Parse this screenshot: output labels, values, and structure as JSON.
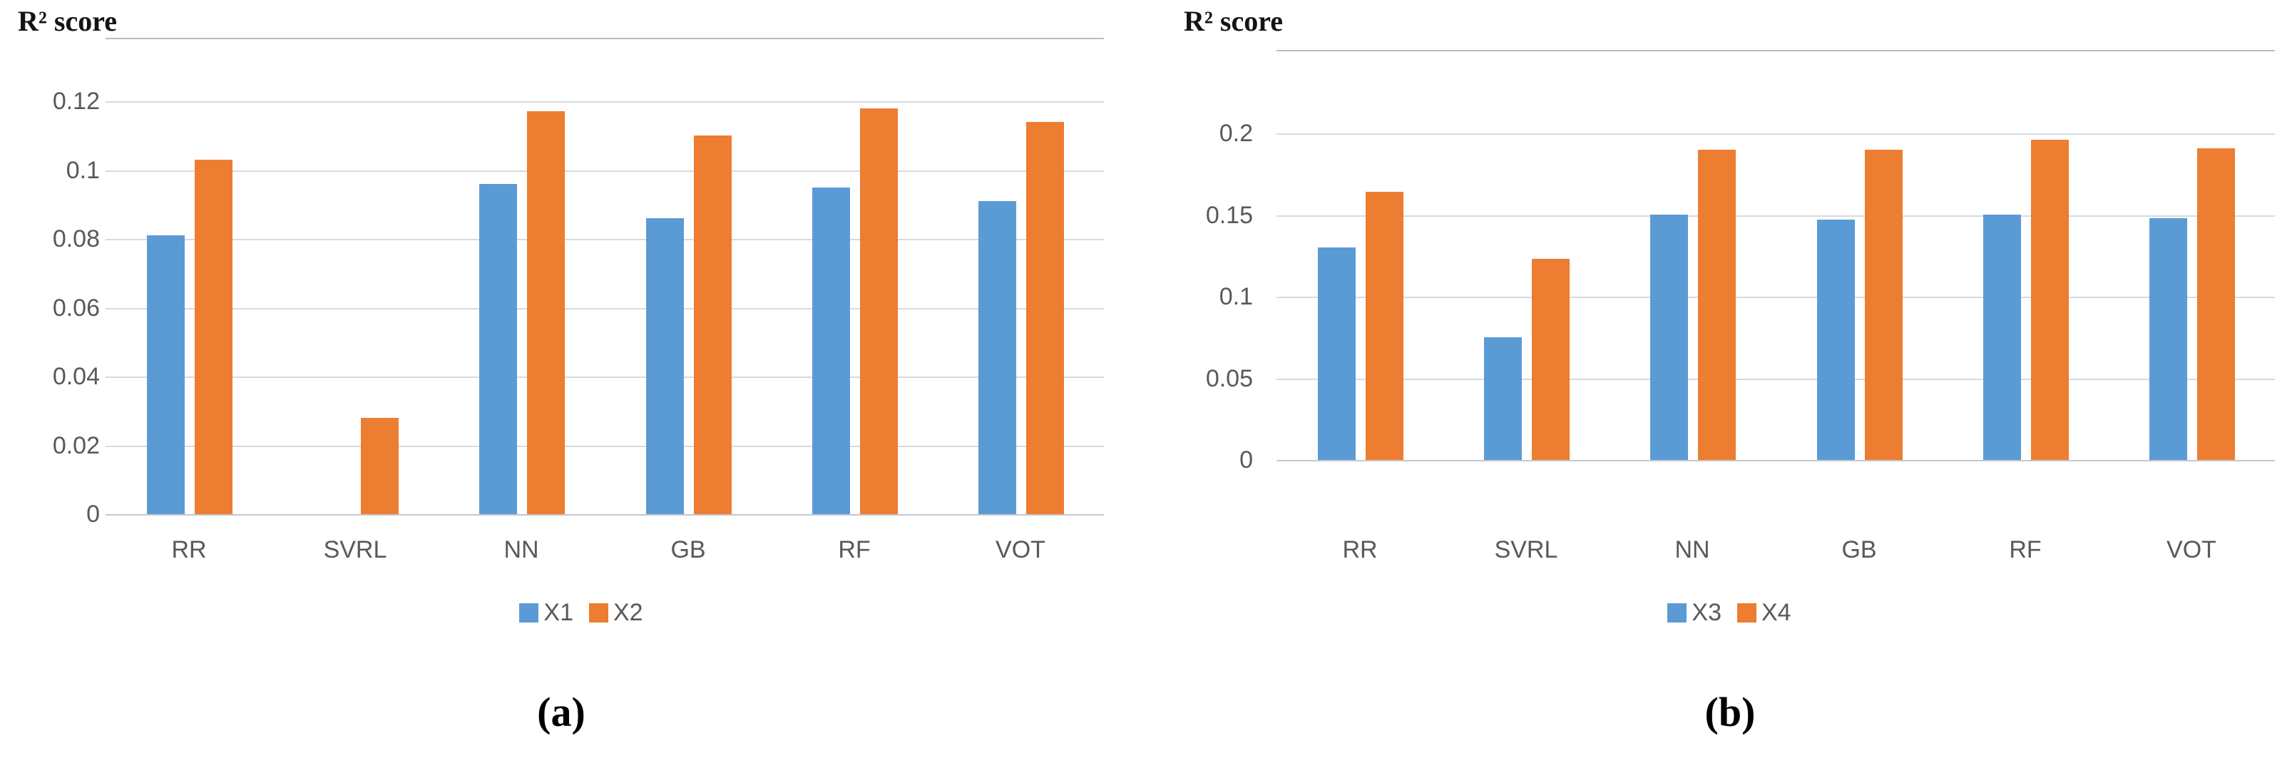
{
  "figure": {
    "background": "#ffffff",
    "text_color": "#595959",
    "gridline_color": "#d7dade"
  },
  "chart_data": [
    {
      "id": "a",
      "type": "bar",
      "title": "R² score",
      "ylabel": "R² score",
      "xlabel": "",
      "caption": "(a)",
      "grid": true,
      "legend_position": "bottom",
      "categories": [
        "RR",
        "SVRL",
        "NN",
        "GB",
        "RF",
        "VOT"
      ],
      "series": [
        {
          "name": "X1",
          "color": "#5B9BD5",
          "values": [
            0.081,
            0,
            0.096,
            0.086,
            0.095,
            0.091
          ]
        },
        {
          "name": "X2",
          "color": "#ED7D31",
          "values": [
            0.103,
            0.028,
            0.117,
            0.11,
            0.118,
            0.114
          ]
        }
      ],
      "ylim": [
        0,
        0.14
      ],
      "yticks": [
        {
          "value": 0,
          "label": "0"
        },
        {
          "value": 0.02,
          "label": "0.02"
        },
        {
          "value": 0.04,
          "label": "0.04"
        },
        {
          "value": 0.06,
          "label": "0.06"
        },
        {
          "value": 0.08,
          "label": "0.08"
        },
        {
          "value": 0.1,
          "label": "0.1"
        },
        {
          "value": 0.12,
          "label": "0.12"
        }
      ]
    },
    {
      "id": "b",
      "type": "bar",
      "title": "R² score",
      "ylabel": "R² score",
      "xlabel": "",
      "caption": "(b)",
      "grid": true,
      "legend_position": "bottom",
      "categories": [
        "RR",
        "SVRL",
        "NN",
        "GB",
        "RF",
        "VOT"
      ],
      "series": [
        {
          "name": "X3",
          "color": "#5B9BD5",
          "values": [
            0.13,
            0.075,
            0.15,
            0.147,
            0.15,
            0.148
          ]
        },
        {
          "name": "X4",
          "color": "#ED7D31",
          "values": [
            0.164,
            0.123,
            0.19,
            0.19,
            0.196,
            0.191
          ]
        }
      ],
      "ylim": [
        0,
        0.25
      ],
      "yticks": [
        {
          "value": 0,
          "label": "0"
        },
        {
          "value": 0.05,
          "label": "0.05"
        },
        {
          "value": 0.1,
          "label": "0.1"
        },
        {
          "value": 0.15,
          "label": "0.15"
        },
        {
          "value": 0.2,
          "label": "0.2"
        }
      ]
    }
  ]
}
